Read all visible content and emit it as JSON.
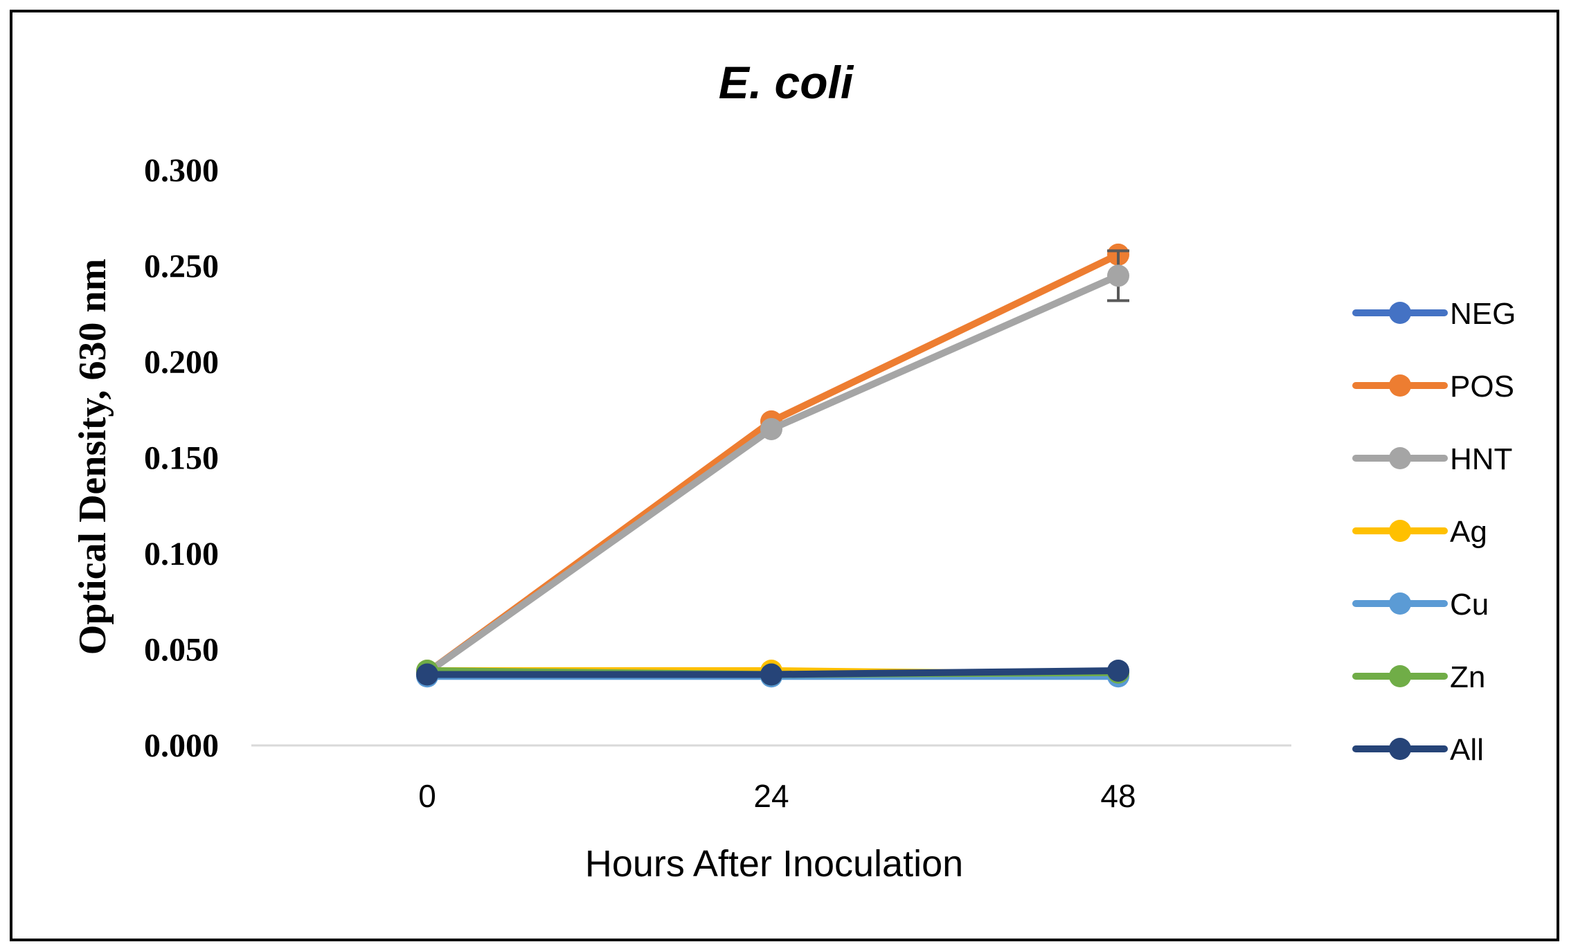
{
  "chart_data": {
    "type": "line",
    "title": "E. coli",
    "xlabel": "Hours After Inoculation",
    "ylabel": "Optical Density, 630 nm",
    "categories": [
      "0",
      "24",
      "48"
    ],
    "ylim": [
      0,
      0.3
    ],
    "yticks": [
      "0.000",
      "0.050",
      "0.100",
      "0.150",
      "0.200",
      "0.250",
      "0.300"
    ],
    "grid": false,
    "legend_position": "right",
    "series": [
      {
        "name": "NEG",
        "color": "#4472C4",
        "values": [
          0.037,
          0.037,
          0.038
        ]
      },
      {
        "name": "POS",
        "color": "#ED7D31",
        "values": [
          0.038,
          0.169,
          0.256
        ]
      },
      {
        "name": "HNT",
        "color": "#A5A5A5",
        "values": [
          0.038,
          0.165,
          0.245
        ],
        "error": [
          0,
          0,
          0.013
        ]
      },
      {
        "name": "Ag",
        "color": "#FFC000",
        "values": [
          0.039,
          0.039,
          0.037
        ]
      },
      {
        "name": "Cu",
        "color": "#5B9BD5",
        "values": [
          0.036,
          0.036,
          0.036
        ]
      },
      {
        "name": "Zn",
        "color": "#70AD47",
        "values": [
          0.039,
          0.037,
          0.038
        ]
      },
      {
        "name": "All",
        "color": "#264478",
        "values": [
          0.037,
          0.037,
          0.039
        ]
      }
    ]
  }
}
